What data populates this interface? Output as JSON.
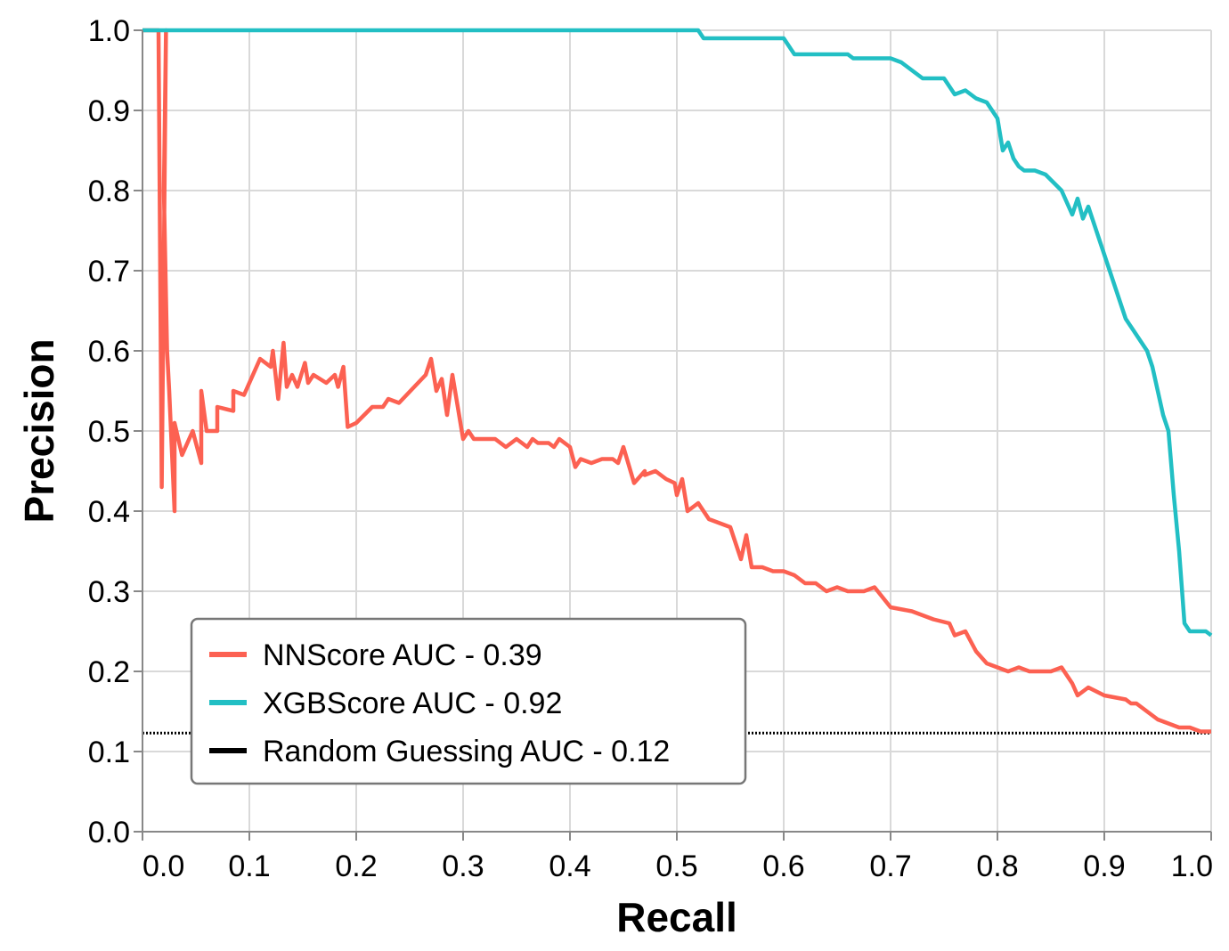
{
  "chart_data": {
    "type": "line",
    "xlabel": "Recall",
    "ylabel": "Precision",
    "xlim": [
      0.0,
      1.0
    ],
    "ylim": [
      0.0,
      1.0
    ],
    "xticks": [
      0.0,
      0.1,
      0.2,
      0.3,
      0.4,
      0.5,
      0.6,
      0.7,
      0.8,
      0.9,
      1.0
    ],
    "yticks": [
      0.0,
      0.1,
      0.2,
      0.3,
      0.4,
      0.5,
      0.6,
      0.7,
      0.8,
      0.9,
      1.0
    ],
    "xtick_labels": [
      "0.0",
      "0.1",
      "0.2",
      "0.3",
      "0.4",
      "0.5",
      "0.6",
      "0.7",
      "0.8",
      "0.9",
      "1.0"
    ],
    "ytick_labels": [
      "0.0",
      "0.1",
      "0.2",
      "0.3",
      "0.4",
      "0.5",
      "0.6",
      "0.7",
      "0.8",
      "0.9",
      "1.0"
    ],
    "grid": true,
    "legend_position": "lower-left",
    "series": [
      {
        "name": "NNScore AUC - 0.39",
        "color": "#fc6152",
        "style": "solid",
        "x": [
          0.0,
          0.015,
          0.018,
          0.022,
          0.02,
          0.023,
          0.025,
          0.03,
          0.03,
          0.037,
          0.047,
          0.055,
          0.055,
          0.06,
          0.07,
          0.07,
          0.085,
          0.085,
          0.095,
          0.11,
          0.12,
          0.122,
          0.127,
          0.132,
          0.135,
          0.14,
          0.145,
          0.152,
          0.155,
          0.16,
          0.172,
          0.18,
          0.183,
          0.188,
          0.192,
          0.2,
          0.215,
          0.225,
          0.23,
          0.24,
          0.265,
          0.27,
          0.275,
          0.28,
          0.285,
          0.29,
          0.3,
          0.305,
          0.31,
          0.33,
          0.34,
          0.35,
          0.36,
          0.365,
          0.37,
          0.38,
          0.385,
          0.39,
          0.4,
          0.405,
          0.41,
          0.42,
          0.43,
          0.44,
          0.445,
          0.45,
          0.46,
          0.47,
          0.47,
          0.48,
          0.49,
          0.498,
          0.5,
          0.505,
          0.51,
          0.52,
          0.53,
          0.55,
          0.56,
          0.565,
          0.57,
          0.58,
          0.59,
          0.6,
          0.61,
          0.62,
          0.63,
          0.64,
          0.65,
          0.66,
          0.675,
          0.685,
          0.7,
          0.72,
          0.74,
          0.755,
          0.76,
          0.77,
          0.78,
          0.79,
          0.8,
          0.81,
          0.82,
          0.83,
          0.84,
          0.85,
          0.86,
          0.87,
          0.875,
          0.885,
          0.9,
          0.92,
          0.925,
          0.93,
          0.94,
          0.95,
          0.96,
          0.97,
          0.98,
          0.99,
          1.0
        ],
        "y": [
          1.0,
          1.0,
          0.43,
          1.0,
          0.8,
          0.6,
          0.55,
          0.4,
          0.51,
          0.47,
          0.5,
          0.46,
          0.55,
          0.5,
          0.5,
          0.53,
          0.525,
          0.55,
          0.545,
          0.59,
          0.58,
          0.6,
          0.54,
          0.61,
          0.555,
          0.57,
          0.555,
          0.585,
          0.56,
          0.57,
          0.56,
          0.57,
          0.555,
          0.58,
          0.505,
          0.51,
          0.53,
          0.53,
          0.54,
          0.535,
          0.57,
          0.59,
          0.55,
          0.565,
          0.52,
          0.57,
          0.49,
          0.5,
          0.49,
          0.49,
          0.48,
          0.49,
          0.48,
          0.49,
          0.485,
          0.485,
          0.48,
          0.49,
          0.48,
          0.455,
          0.465,
          0.46,
          0.465,
          0.465,
          0.46,
          0.48,
          0.435,
          0.45,
          0.445,
          0.45,
          0.44,
          0.435,
          0.42,
          0.44,
          0.4,
          0.41,
          0.39,
          0.38,
          0.34,
          0.37,
          0.33,
          0.33,
          0.325,
          0.325,
          0.32,
          0.31,
          0.31,
          0.3,
          0.305,
          0.3,
          0.3,
          0.305,
          0.28,
          0.275,
          0.265,
          0.26,
          0.245,
          0.25,
          0.225,
          0.21,
          0.205,
          0.2,
          0.205,
          0.2,
          0.2,
          0.2,
          0.205,
          0.185,
          0.17,
          0.18,
          0.17,
          0.165,
          0.16,
          0.16,
          0.15,
          0.14,
          0.135,
          0.13,
          0.13,
          0.125,
          0.125
        ]
      },
      {
        "name": "XGBScore AUC - 0.92",
        "color": "#22bfc4",
        "style": "solid",
        "x": [
          0.0,
          0.1,
          0.2,
          0.3,
          0.4,
          0.5,
          0.52,
          0.525,
          0.53,
          0.55,
          0.58,
          0.6,
          0.605,
          0.61,
          0.62,
          0.66,
          0.665,
          0.675,
          0.7,
          0.71,
          0.72,
          0.73,
          0.74,
          0.75,
          0.76,
          0.77,
          0.78,
          0.79,
          0.8,
          0.805,
          0.81,
          0.815,
          0.82,
          0.825,
          0.835,
          0.845,
          0.86,
          0.87,
          0.875,
          0.88,
          0.885,
          0.89,
          0.895,
          0.9,
          0.905,
          0.91,
          0.915,
          0.92,
          0.925,
          0.93,
          0.935,
          0.94,
          0.945,
          0.95,
          0.955,
          0.96,
          0.965,
          0.97,
          0.975,
          0.98,
          0.985,
          0.99,
          0.995,
          1.0
        ],
        "y": [
          1.0,
          1.0,
          1.0,
          1.0,
          1.0,
          1.0,
          1.0,
          0.99,
          0.99,
          0.99,
          0.99,
          0.99,
          0.98,
          0.97,
          0.97,
          0.97,
          0.965,
          0.965,
          0.965,
          0.96,
          0.95,
          0.94,
          0.94,
          0.94,
          0.92,
          0.925,
          0.915,
          0.91,
          0.89,
          0.85,
          0.86,
          0.84,
          0.83,
          0.825,
          0.825,
          0.82,
          0.8,
          0.77,
          0.79,
          0.765,
          0.78,
          0.76,
          0.74,
          0.72,
          0.7,
          0.68,
          0.66,
          0.64,
          0.63,
          0.62,
          0.61,
          0.6,
          0.58,
          0.55,
          0.52,
          0.5,
          0.42,
          0.35,
          0.26,
          0.25,
          0.25,
          0.25,
          0.25,
          0.245
        ]
      },
      {
        "name": "Random Guessing AUC - 0.12",
        "color": "#000000",
        "style": "dotted",
        "x": [
          0.0,
          1.0
        ],
        "y": [
          0.123,
          0.123
        ]
      }
    ]
  }
}
